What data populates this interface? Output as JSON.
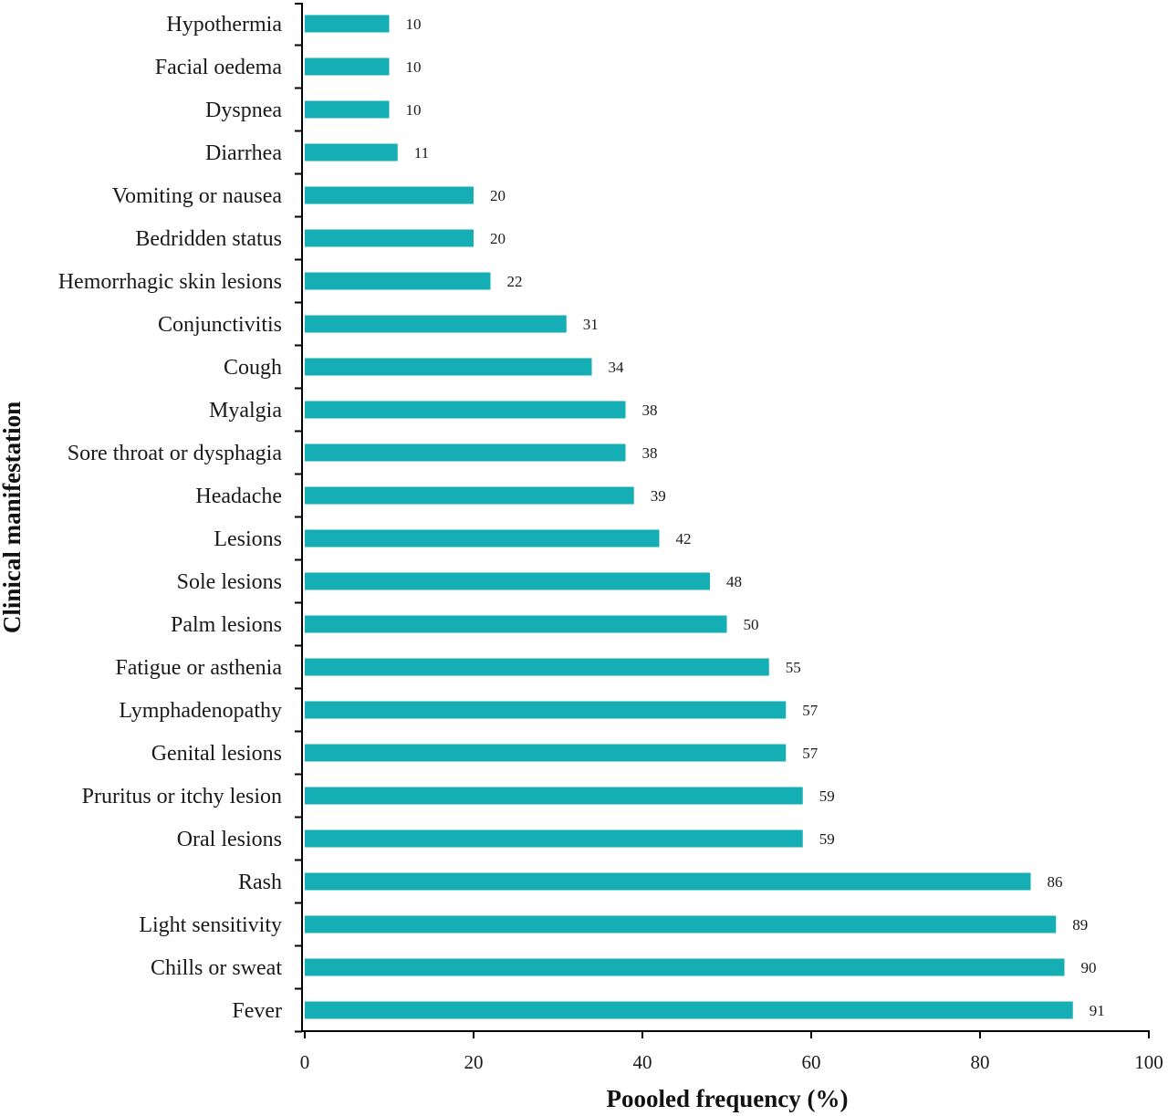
{
  "chart_data": {
    "type": "bar",
    "orientation": "horizontal",
    "title": "",
    "xlabel": "Poooled frequency (%)",
    "ylabel": "Clinical manifestation",
    "xlim": [
      0,
      100
    ],
    "xticks": [
      0,
      20,
      40,
      60,
      80,
      100
    ],
    "grid": false,
    "legend": "none",
    "bar_color": "#14aeb4",
    "categories": [
      "Hypothermia",
      "Facial oedema",
      "Dyspnea",
      "Diarrhea",
      "Vomiting or nausea",
      "Bedridden status",
      "Hemorrhagic skin lesions",
      "Conjunctivitis",
      "Cough",
      "Myalgia",
      "Sore throat or dysphagia",
      "Headache",
      "Lesions",
      "Sole lesions",
      "Palm lesions",
      "Fatigue or asthenia",
      "Lymphadenopathy",
      "Genital lesions",
      "Pruritus or itchy lesion",
      "Oral lesions",
      "Rash",
      "Light sensitivity",
      "Chills or sweat",
      "Fever"
    ],
    "values": [
      10,
      10,
      10,
      11,
      20,
      20,
      22,
      31,
      34,
      38,
      38,
      39,
      42,
      48,
      50,
      55,
      57,
      57,
      59,
      59,
      86,
      89,
      90,
      91
    ]
  }
}
